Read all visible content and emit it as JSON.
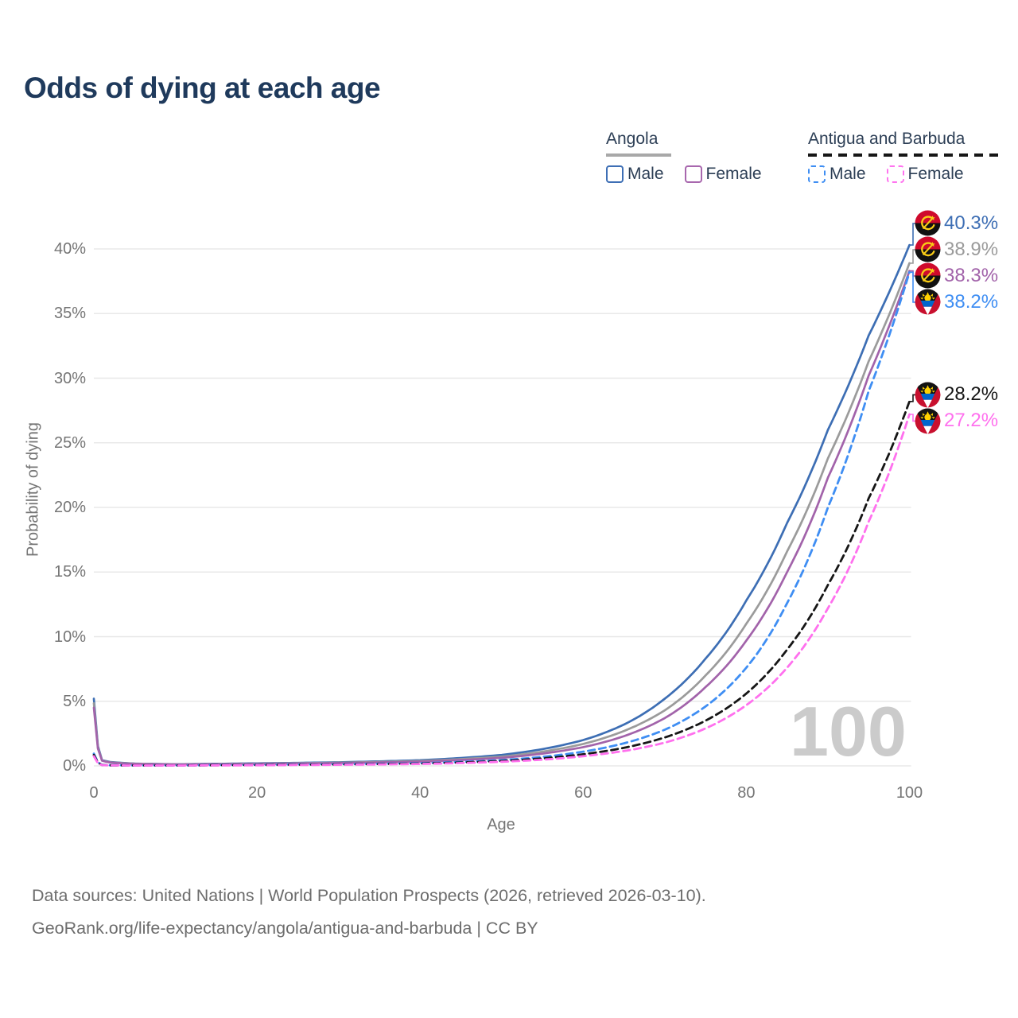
{
  "title": "Odds of dying at each age",
  "legend": {
    "groups": [
      {
        "country": "Angola",
        "line_style": "solid",
        "items": [
          {
            "label": "Male",
            "color": "#3e6fb5"
          },
          {
            "label": "Female",
            "color": "#a867ae"
          }
        ]
      },
      {
        "country": "Antigua and Barbuda",
        "line_style": "dashed",
        "items": [
          {
            "label": "Male",
            "color": "#3f8ef3"
          },
          {
            "label": "Female",
            "color": "#ff74ef"
          }
        ]
      }
    ]
  },
  "axes": {
    "x_label": "Age",
    "y_label": "Probability of dying",
    "x_ticks": [
      {
        "label": "0",
        "value": 0
      },
      {
        "label": "20",
        "value": 20
      },
      {
        "label": "40",
        "value": 40
      },
      {
        "label": "60",
        "value": 60
      },
      {
        "label": "80",
        "value": 80
      },
      {
        "label": "100",
        "value": 100
      }
    ],
    "y_ticks": [
      {
        "label": "0%",
        "value": 0
      },
      {
        "label": "5%",
        "value": 5
      },
      {
        "label": "10%",
        "value": 10
      },
      {
        "label": "15%",
        "value": 15
      },
      {
        "label": "20%",
        "value": 20
      },
      {
        "label": "25%",
        "value": 25
      },
      {
        "label": "30%",
        "value": 30
      },
      {
        "label": "35%",
        "value": 35
      },
      {
        "label": "40%",
        "value": 40
      }
    ],
    "xlim": [
      0,
      100
    ],
    "ylim": [
      0,
      42
    ],
    "grid": "horizontal-only"
  },
  "watermark": "100",
  "footer": {
    "line1": "Data sources: United Nations | World Population Prospects (2026, retrieved 2026-03-10).",
    "line2": "GeoRank.org/life-expectancy/angola/antigua-and-barbuda | CC BY"
  },
  "chart_data": {
    "type": "line",
    "x_name": "age",
    "unit": "percent probability of dying",
    "ages": [
      0,
      1,
      2,
      5,
      10,
      20,
      30,
      40,
      50,
      55,
      60,
      65,
      70,
      75,
      80,
      85,
      90,
      95,
      100
    ],
    "series": [
      {
        "name": "Angola — Male",
        "country": "Angola",
        "sex": "Male",
        "color": "#3d6eb4",
        "dash": "solid",
        "flag": "angola",
        "end_label": "40.3%",
        "end_value": 40.3,
        "values": [
          5.2,
          0.45,
          0.3,
          0.18,
          0.13,
          0.2,
          0.28,
          0.44,
          0.85,
          1.3,
          2.0,
          3.2,
          5.2,
          8.3,
          12.8,
          18.8,
          26.0,
          33.3,
          40.3
        ]
      },
      {
        "name": "Angola — Both sexes",
        "country": "Angola",
        "sex": "Both sexes",
        "color": "#9b9b9b",
        "dash": "solid",
        "flag": "angola",
        "end_label": "38.9%",
        "end_value": 38.9,
        "values": [
          4.85,
          0.42,
          0.28,
          0.17,
          0.12,
          0.17,
          0.25,
          0.38,
          0.72,
          1.1,
          1.7,
          2.7,
          4.3,
          7.0,
          11.0,
          16.6,
          23.8,
          31.3,
          38.9
        ]
      },
      {
        "name": "Angola — Female",
        "country": "Angola",
        "sex": "Female",
        "color": "#a263aa",
        "dash": "solid",
        "flag": "angola",
        "end_label": "38.3%",
        "end_value": 38.3,
        "values": [
          4.5,
          0.4,
          0.26,
          0.15,
          0.11,
          0.15,
          0.22,
          0.33,
          0.62,
          0.95,
          1.45,
          2.3,
          3.7,
          6.1,
          9.7,
          15.0,
          22.3,
          30.2,
          38.3
        ]
      },
      {
        "name": "Antigua and Barbuda — Male",
        "country": "Antigua and Barbuda",
        "sex": "Male",
        "color": "#3f8ef3",
        "dash": "dashed",
        "flag": "antigua",
        "end_label": "38.2%",
        "end_value": 38.2,
        "values": [
          0.95,
          0.08,
          0.05,
          0.04,
          0.04,
          0.09,
          0.13,
          0.21,
          0.45,
          0.7,
          1.1,
          1.75,
          2.8,
          4.6,
          7.6,
          12.6,
          20.0,
          29.0,
          38.2
        ]
      },
      {
        "name": "Antigua and Barbuda — Both sexes",
        "country": "Antigua and Barbuda",
        "sex": "Both sexes",
        "color": "#161616",
        "dash": "dashed",
        "flag": "antigua",
        "end_label": "28.2%",
        "end_value": 28.2,
        "values": [
          0.85,
          0.07,
          0.045,
          0.035,
          0.035,
          0.07,
          0.11,
          0.18,
          0.38,
          0.58,
          0.9,
          1.4,
          2.2,
          3.5,
          5.6,
          9.0,
          14.0,
          20.7,
          28.2
        ]
      },
      {
        "name": "Antigua and Barbuda — Female",
        "country": "Antigua and Barbuda",
        "sex": "Female",
        "color": "#ff70ee",
        "dash": "dashed",
        "flag": "antigua",
        "end_label": "27.2%",
        "end_value": 27.2,
        "values": [
          0.75,
          0.06,
          0.04,
          0.03,
          0.03,
          0.05,
          0.09,
          0.15,
          0.32,
          0.48,
          0.75,
          1.15,
          1.8,
          2.9,
          4.7,
          7.6,
          12.2,
          18.9,
          27.2
        ]
      }
    ]
  }
}
